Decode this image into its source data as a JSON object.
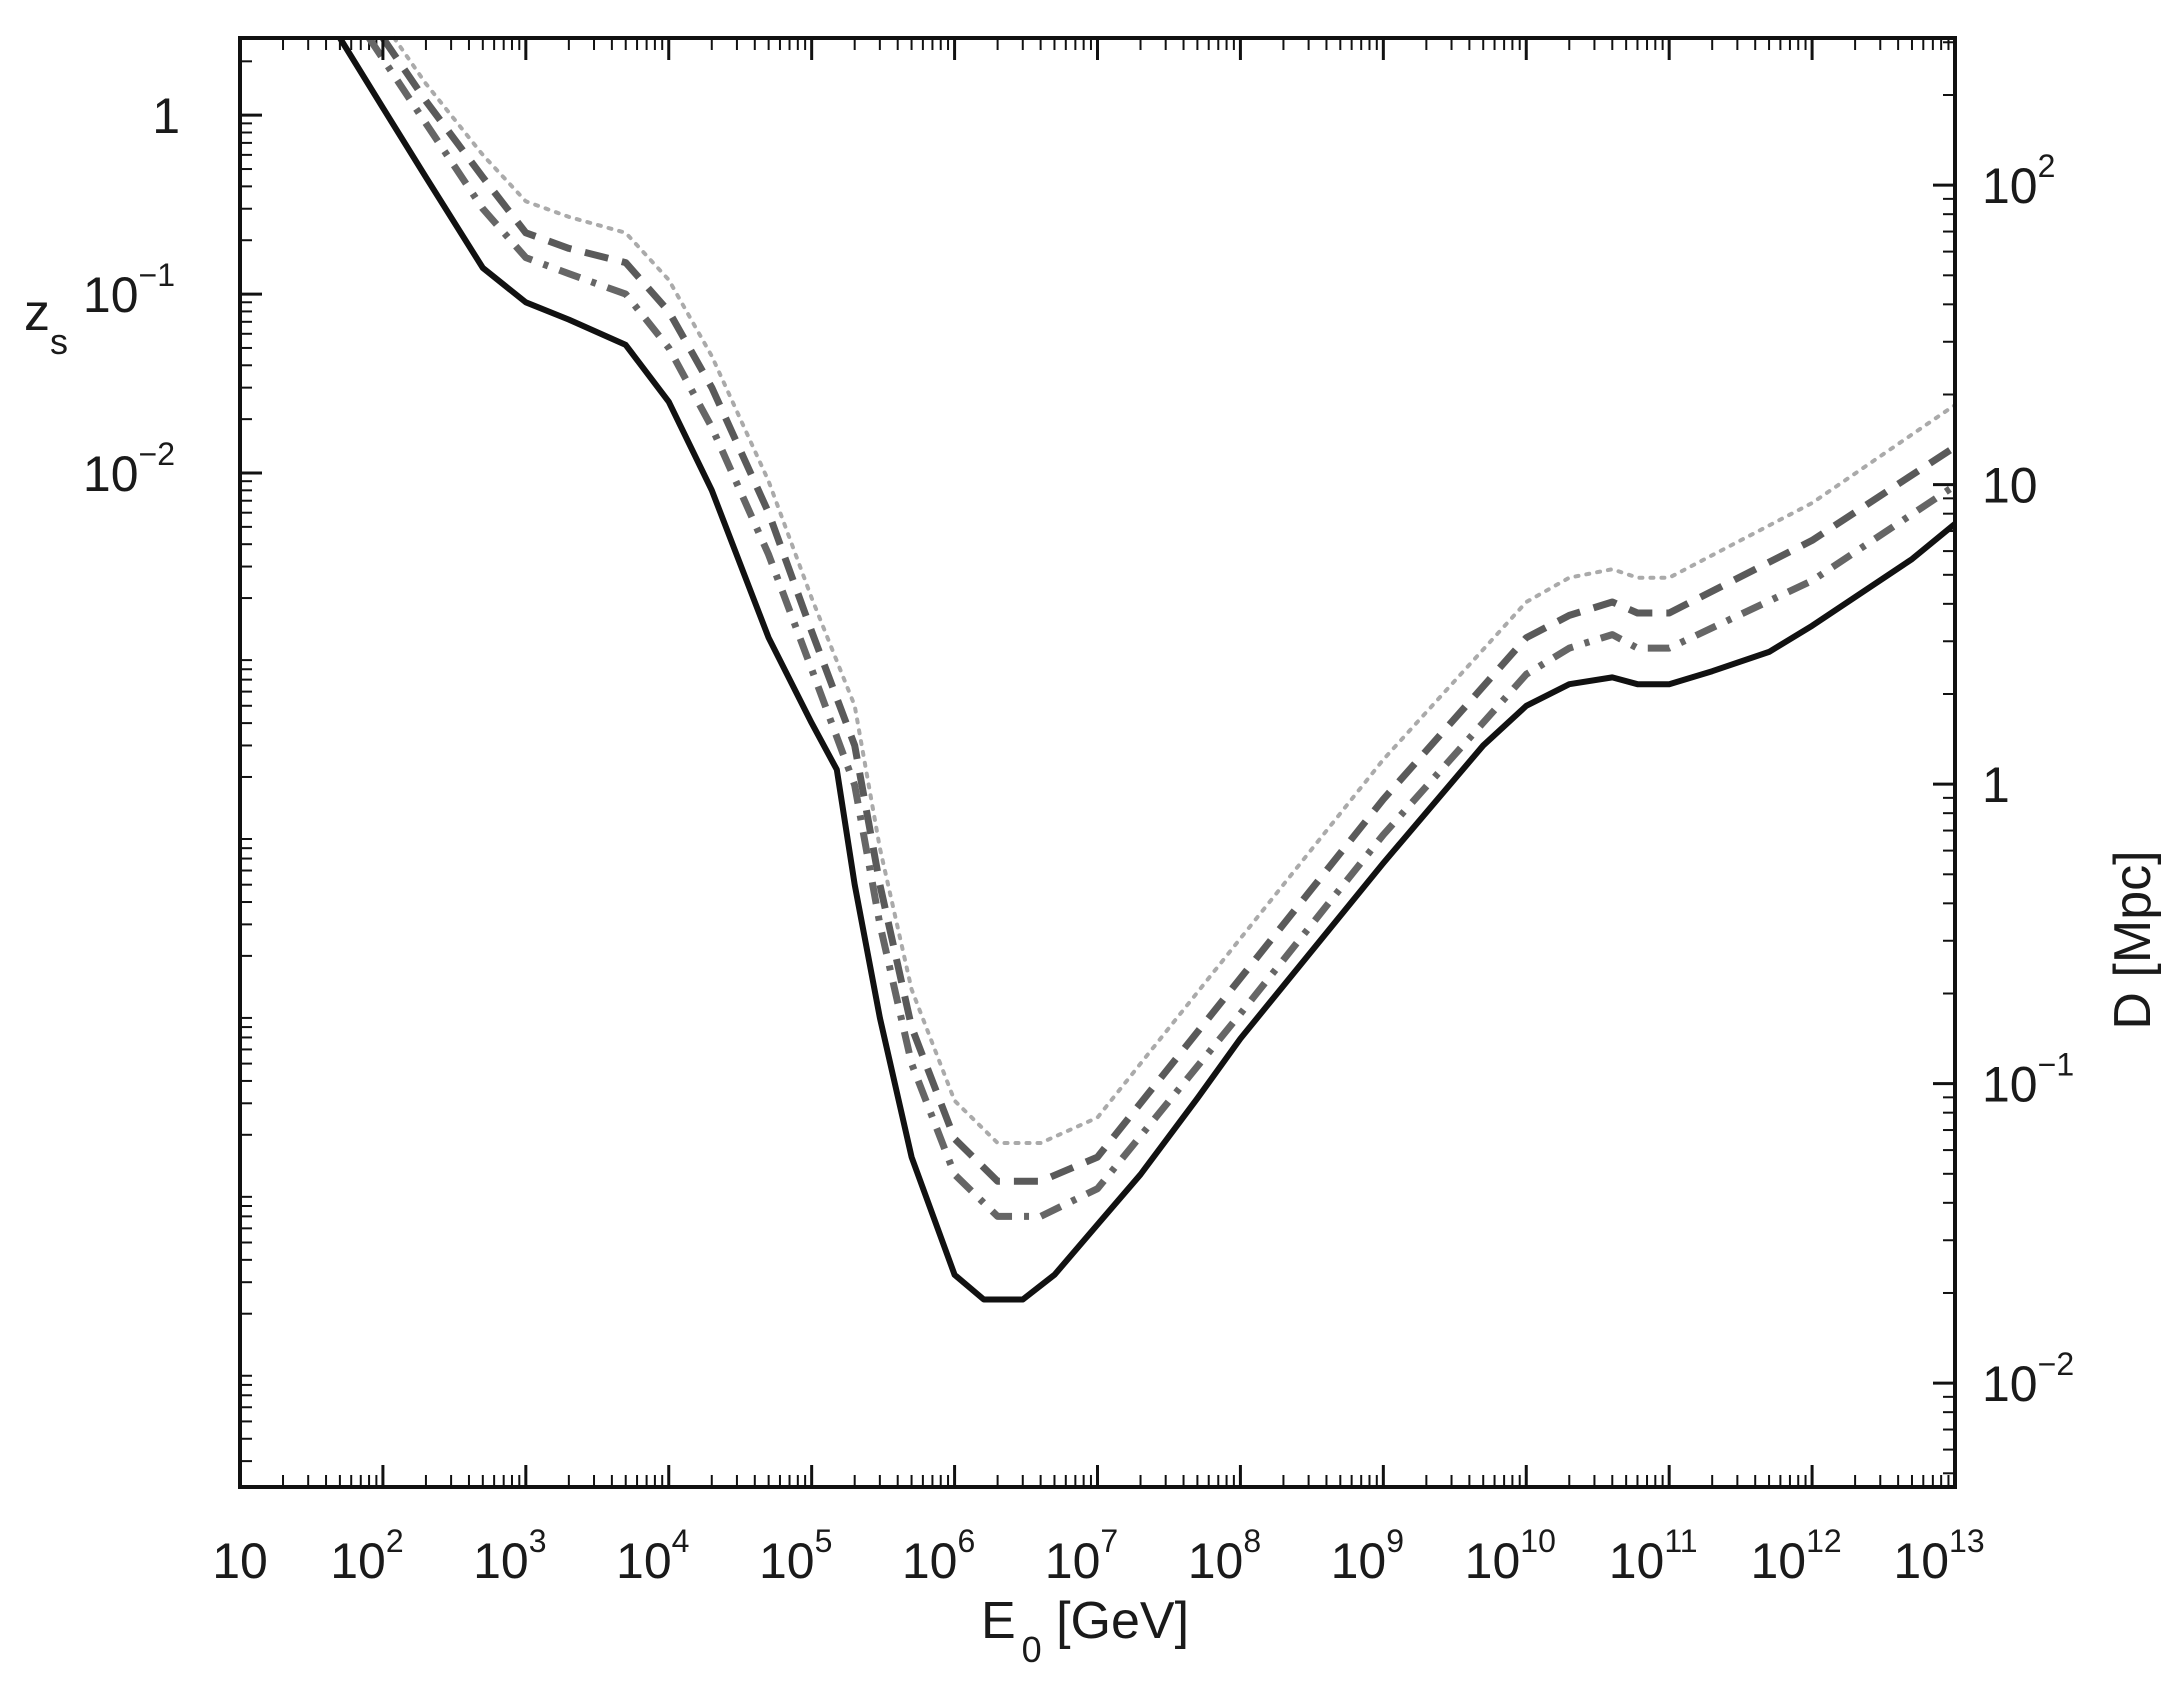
{
  "chart_data": {
    "type": "line",
    "x_axis": {
      "label_main": "E",
      "label_sub": "0",
      "label_unit": " [GeV]",
      "scale": "log",
      "range": [
        10,
        10000000000000
      ],
      "ticks": [
        {
          "value": 10,
          "base": "10",
          "exp": ""
        },
        {
          "value": 100,
          "base": "10",
          "exp": "2"
        },
        {
          "value": 1000,
          "base": "10",
          "exp": "3"
        },
        {
          "value": 10000,
          "base": "10",
          "exp": "4"
        },
        {
          "value": 100000,
          "base": "10",
          "exp": "5"
        },
        {
          "value": 1000000,
          "base": "10",
          "exp": "6"
        },
        {
          "value": 10000000,
          "base": "10",
          "exp": "7"
        },
        {
          "value": 100000000,
          "base": "10",
          "exp": "8"
        },
        {
          "value": 1000000000,
          "base": "10",
          "exp": "9"
        },
        {
          "value": 10000000000,
          "base": "10",
          "exp": "10"
        },
        {
          "value": 100000000000,
          "base": "10",
          "exp": "11"
        },
        {
          "value": 1000000000000,
          "base": "10",
          "exp": "12"
        },
        {
          "value": 10000000000000,
          "base": "10",
          "exp": "13"
        }
      ]
    },
    "y_left_axis": {
      "label_main": "z",
      "label_sub": "s",
      "scale": "log",
      "range": [
        2.15e-08,
        2.7
      ],
      "ticks": [
        {
          "value": 1,
          "base": "1",
          "exp": ""
        },
        {
          "value": 0.1,
          "base": "10",
          "exp": "−1"
        },
        {
          "value": 0.01,
          "base": "10",
          "exp": "−2"
        }
      ]
    },
    "y_right_axis": {
      "label": "D [Mpc]",
      "scale": "log",
      "range": [
        0.0045,
        310
      ],
      "ticks": [
        {
          "value": 100,
          "base": "10",
          "exp": "2"
        },
        {
          "value": 10,
          "base": "10",
          "exp": ""
        },
        {
          "value": 1,
          "base": "1",
          "exp": ""
        },
        {
          "value": 0.1,
          "base": "10",
          "exp": "−1"
        },
        {
          "value": 0.01,
          "base": "10",
          "exp": "−2"
        }
      ]
    },
    "series": [
      {
        "style": "solid",
        "color": "#111111",
        "x": [
          50,
          100,
          200,
          500,
          1000,
          2000,
          5000,
          10000,
          20000,
          50000,
          100000,
          150000,
          200000,
          300000,
          500000,
          1000000,
          1600000,
          3000000,
          5000000,
          10000000,
          20000000,
          50000000,
          100000000,
          1000000000,
          5000000000,
          10000000000,
          20000000000,
          40000000000,
          60000000000,
          100000000000,
          200000000000,
          500000000000,
          1000000000000,
          5000000000000,
          10000000000000
        ],
        "y": [
          2.7,
          1.1,
          0.45,
          0.14,
          0.09,
          0.072,
          0.052,
          0.025,
          0.008,
          0.0012,
          0.0004,
          0.00022,
          5e-05,
          9e-06,
          1.5e-06,
          3.3e-07,
          2.4e-07,
          2.4e-07,
          3.3e-07,
          6.3e-07,
          1.2e-06,
          3.2e-06,
          6.9e-06,
          6.6e-05,
          0.0003,
          0.0005,
          0.00066,
          0.00072,
          0.00066,
          0.00066,
          0.00078,
          0.001,
          0.0014,
          0.0033,
          0.0052
        ]
      },
      {
        "style": "dashdot",
        "color": "#666666",
        "x": [
          80,
          200,
          500,
          1000,
          2000,
          5000,
          10000,
          20000,
          50000,
          100000,
          200000,
          300000,
          500000,
          1000000,
          2000000,
          4000000,
          10000000,
          100000000,
          1000000000,
          10000000000,
          20000000000,
          40000000000,
          60000000000,
          100000000000,
          1000000000000,
          10000000000000
        ],
        "y": [
          2.7,
          0.9,
          0.3,
          0.16,
          0.13,
          0.1,
          0.05,
          0.018,
          0.0035,
          0.0008,
          0.00018,
          3e-05,
          5e-06,
          1.2e-06,
          7e-07,
          7e-07,
          1e-06,
          9.5e-06,
          9.5e-05,
          0.00075,
          0.00105,
          0.00125,
          0.00105,
          0.00105,
          0.0025,
          0.0085
        ]
      },
      {
        "style": "dashed",
        "color": "#5a5a5a",
        "x": [
          100,
          200,
          500,
          1000,
          2000,
          5000,
          10000,
          20000,
          50000,
          100000,
          200000,
          300000,
          500000,
          1000000,
          2000000,
          4000000,
          10000000,
          100000000,
          1000000000,
          10000000000,
          20000000000,
          40000000000,
          60000000000,
          100000000000,
          1000000000000,
          10000000000000
        ],
        "y": [
          2.7,
          1.2,
          0.45,
          0.22,
          0.18,
          0.15,
          0.08,
          0.03,
          0.006,
          0.0013,
          0.0003,
          5e-05,
          8e-06,
          1.9e-06,
          1.1e-06,
          1.1e-06,
          1.5e-06,
          1.5e-05,
          0.00015,
          0.0012,
          0.0016,
          0.0019,
          0.00165,
          0.00165,
          0.0042,
          0.014
        ]
      },
      {
        "style": "dotted",
        "color": "#aaaaaa",
        "x": [
          120,
          200,
          500,
          1000,
          2000,
          5000,
          10000,
          20000,
          50000,
          100000,
          200000,
          300000,
          500000,
          1000000,
          2000000,
          4000000,
          10000000,
          100000000,
          1000000000,
          10000000000,
          20000000000,
          40000000000,
          60000000000,
          100000000000,
          1000000000000,
          10000000000000
        ],
        "y": [
          2.7,
          1.5,
          0.6,
          0.33,
          0.27,
          0.22,
          0.12,
          0.045,
          0.009,
          0.002,
          0.0005,
          8e-05,
          1.3e-05,
          3.1e-06,
          1.8e-06,
          1.8e-06,
          2.5e-06,
          2.5e-05,
          0.00025,
          0.0019,
          0.0026,
          0.0029,
          0.0026,
          0.0026,
          0.0068,
          0.024
        ]
      }
    ]
  }
}
